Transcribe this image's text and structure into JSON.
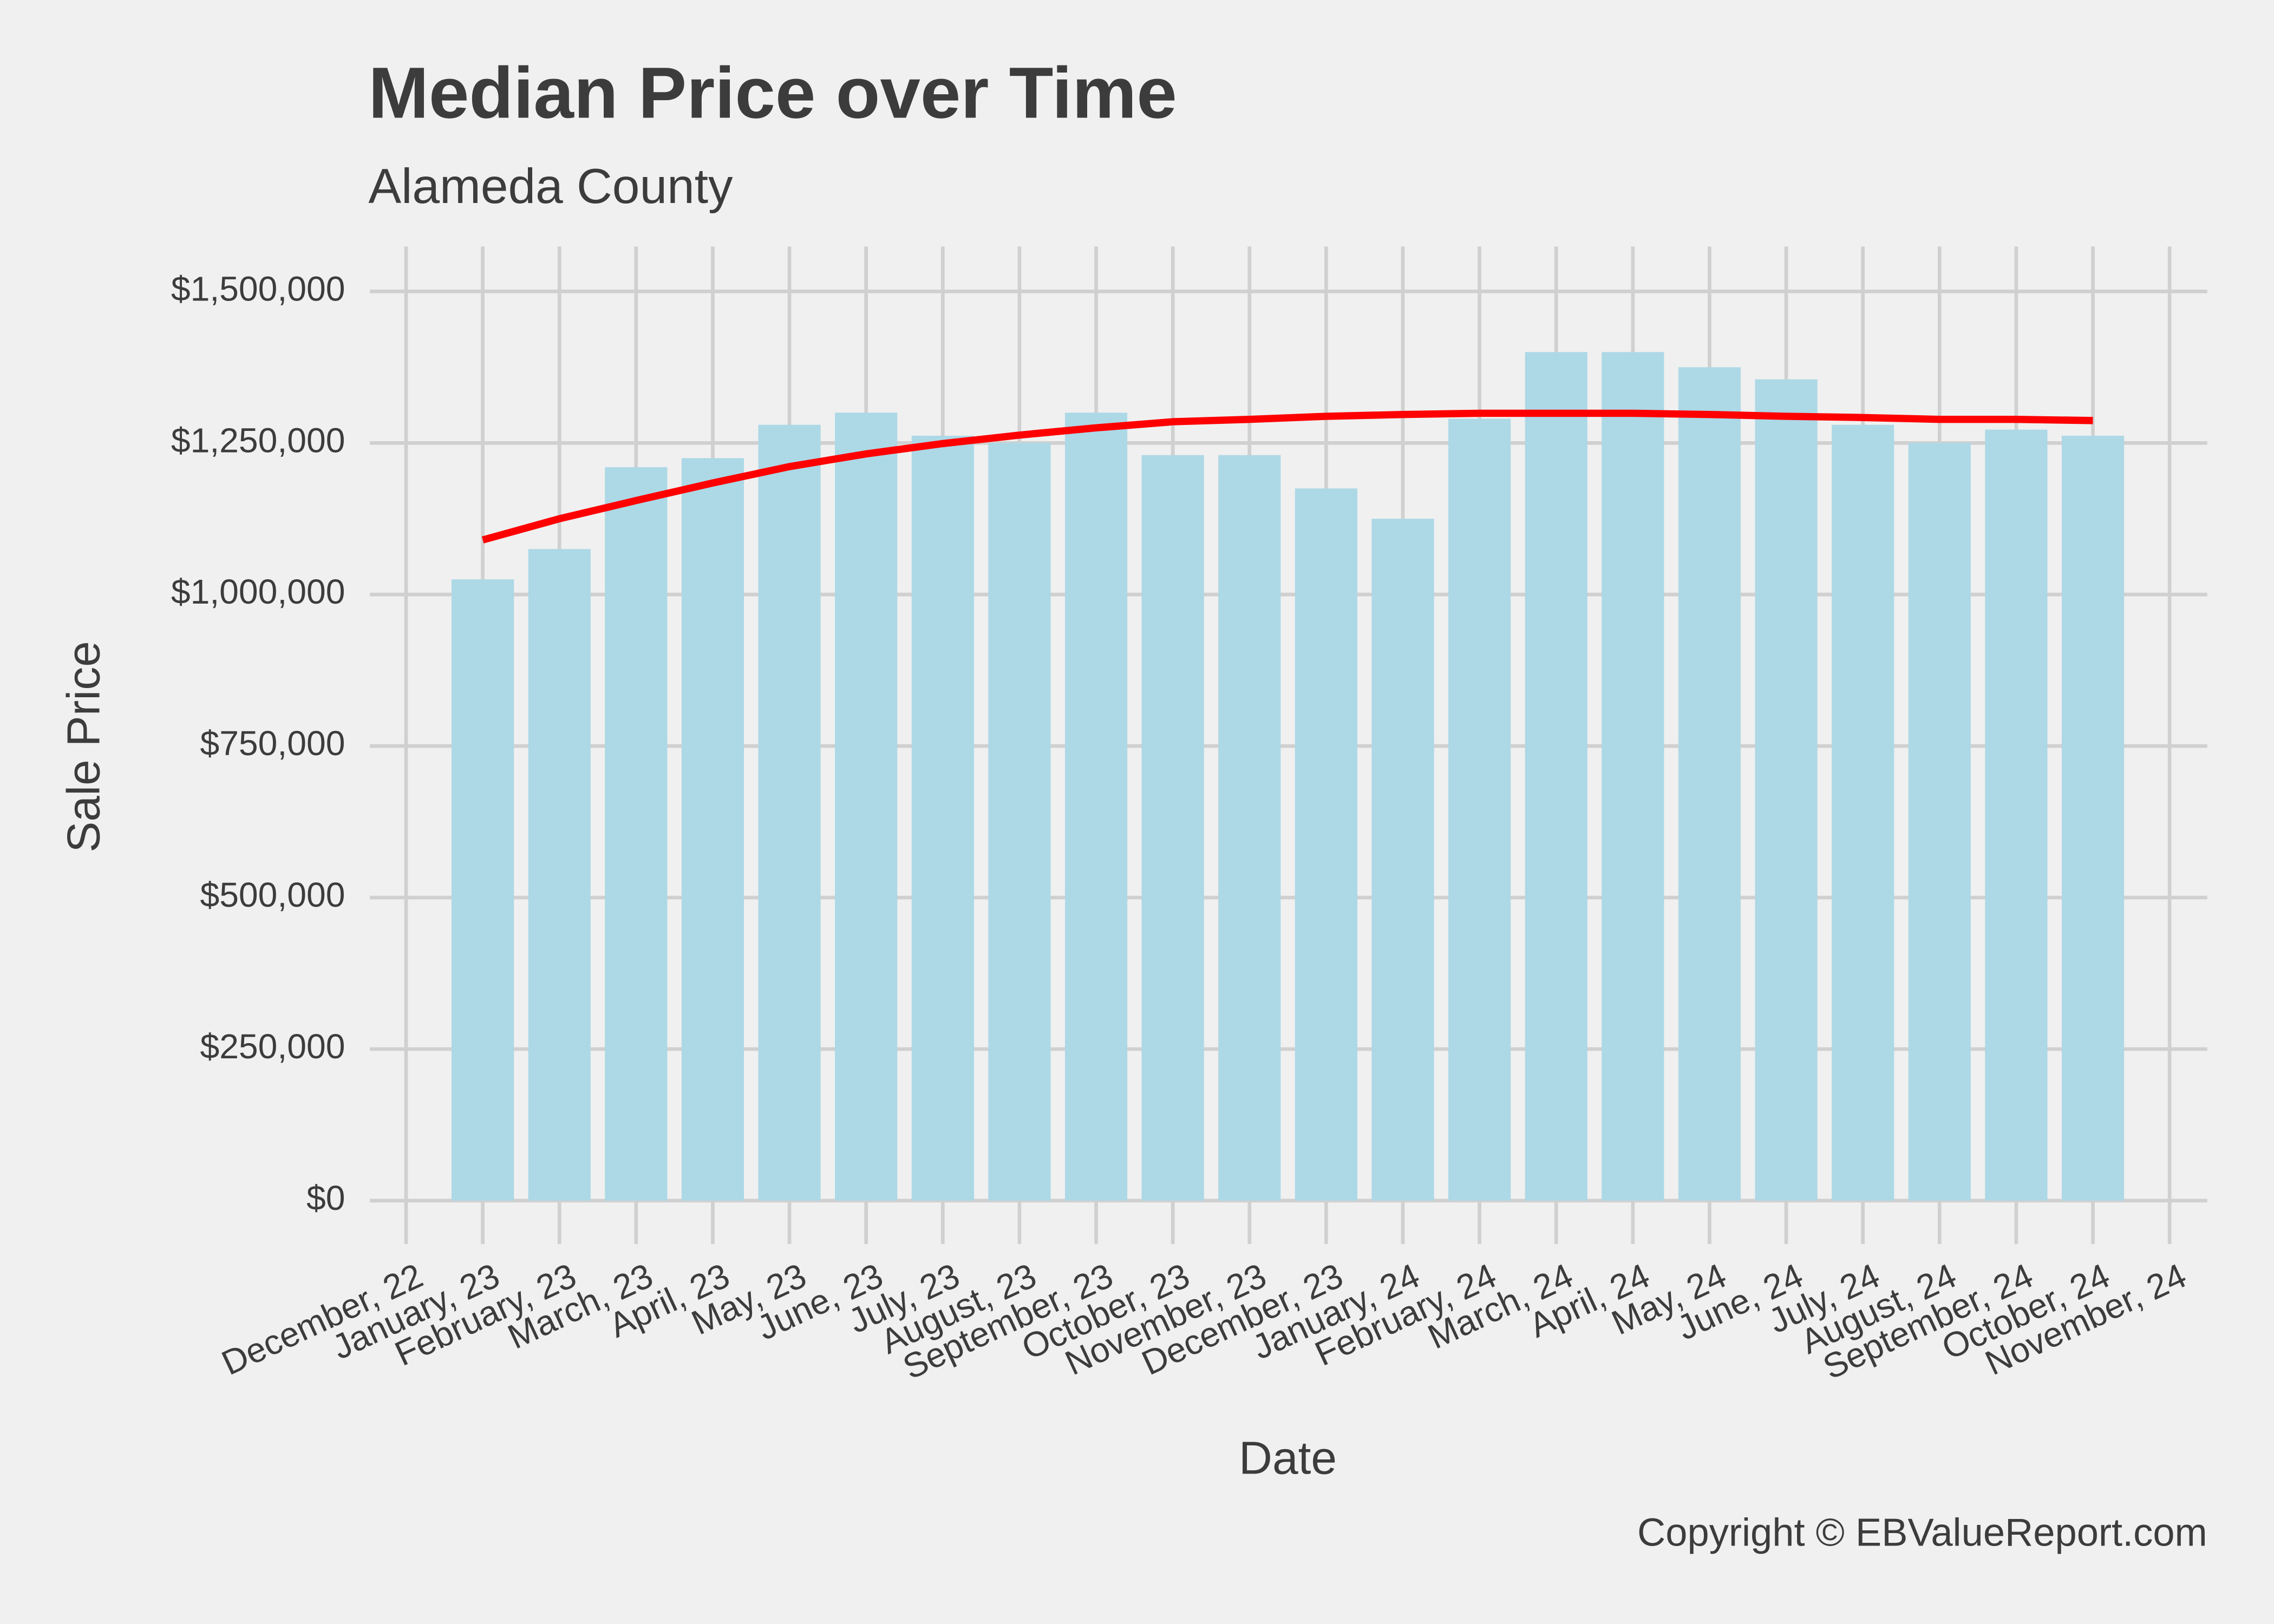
{
  "chart_data": {
    "type": "bar",
    "title": "Median Price over Time",
    "subtitle": "Alameda County",
    "x_label": "Date",
    "y_label": "Sale Price",
    "caption": "Copyright  © EBValueReport.com",
    "x": [
      "2023-01",
      "2023-02",
      "2023-03",
      "2023-04",
      "2023-05",
      "2023-06",
      "2023-07",
      "2023-08",
      "2023-09",
      "2023-10",
      "2023-11",
      "2023-12",
      "2024-01",
      "2024-02",
      "2024-03",
      "2024-04",
      "2024-05",
      "2024-06",
      "2024-07",
      "2024-08",
      "2024-09",
      "2024-10"
    ],
    "values": [
      1025000,
      1075000,
      1210000,
      1225000,
      1280000,
      1300000,
      1262000,
      1250000,
      1300000,
      1230000,
      1230000,
      1175000,
      1125000,
      1290000,
      1400000,
      1400000,
      1375000,
      1355000,
      1280000,
      1250000,
      1272000,
      1262000
    ],
    "color": "#add8e6",
    "trend_values": [
      1090000,
      1125000,
      1155000,
      1184000,
      1211000,
      1232000,
      1249000,
      1263000,
      1275000,
      1285000,
      1289000,
      1294000,
      1297000,
      1299000,
      1299000,
      1299000,
      1297000,
      1294000,
      1292000,
      1289000,
      1289000,
      1287000
    ],
    "trend_color": "#ff0000",
    "xlim": [
      "2022-12",
      "2024-11"
    ],
    "xticks": [
      {
        "value": "2022-12",
        "label": "December, 22"
      },
      {
        "value": "2023-01",
        "label": "January, 23"
      },
      {
        "value": "2023-02",
        "label": "February, 23"
      },
      {
        "value": "2023-03",
        "label": "March, 23"
      },
      {
        "value": "2023-04",
        "label": "April, 23"
      },
      {
        "value": "2023-05",
        "label": "May, 23"
      },
      {
        "value": "2023-06",
        "label": "June, 23"
      },
      {
        "value": "2023-07",
        "label": "July, 23"
      },
      {
        "value": "2023-08",
        "label": "August, 23"
      },
      {
        "value": "2023-09",
        "label": "September, 23"
      },
      {
        "value": "2023-10",
        "label": "October, 23"
      },
      {
        "value": "2023-11",
        "label": "November, 23"
      },
      {
        "value": "2023-12",
        "label": "December, 23"
      },
      {
        "value": "2024-01",
        "label": "January, 24"
      },
      {
        "value": "2024-02",
        "label": "February, 24"
      },
      {
        "value": "2024-03",
        "label": "March, 24"
      },
      {
        "value": "2024-04",
        "label": "April, 24"
      },
      {
        "value": "2024-05",
        "label": "May, 24"
      },
      {
        "value": "2024-06",
        "label": "June, 24"
      },
      {
        "value": "2024-07",
        "label": "July, 24"
      },
      {
        "value": "2024-08",
        "label": "August, 24"
      },
      {
        "value": "2024-09",
        "label": "September, 24"
      },
      {
        "value": "2024-10",
        "label": "October, 24"
      },
      {
        "value": "2024-11",
        "label": "November, 24"
      }
    ],
    "ylim": [
      0,
      1500000
    ],
    "yticks": [
      {
        "value": 0,
        "label": "$0"
      },
      {
        "value": 250000,
        "label": "$250,000"
      },
      {
        "value": 500000,
        "label": "$500,000"
      },
      {
        "value": 750000,
        "label": "$750,000"
      },
      {
        "value": 1000000,
        "label": "$1,000,000"
      },
      {
        "value": 1250000,
        "label": "$1,250,000"
      },
      {
        "value": 1500000,
        "label": "$1,500,000"
      }
    ],
    "grid": true
  }
}
